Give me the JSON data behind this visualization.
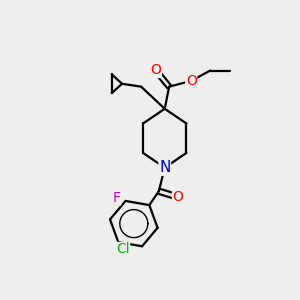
{
  "bg_color": "#eeeeee",
  "atom_colors": {
    "O": "#ff0000",
    "N": "#0000cc",
    "F": "#cc00cc",
    "Cl": "#00bb00",
    "C": "#000000"
  },
  "bond_color": "#000000",
  "bond_width": 1.6,
  "font_size": 10,
  "fig_size": [
    3.0,
    3.0
  ],
  "dpi": 100
}
